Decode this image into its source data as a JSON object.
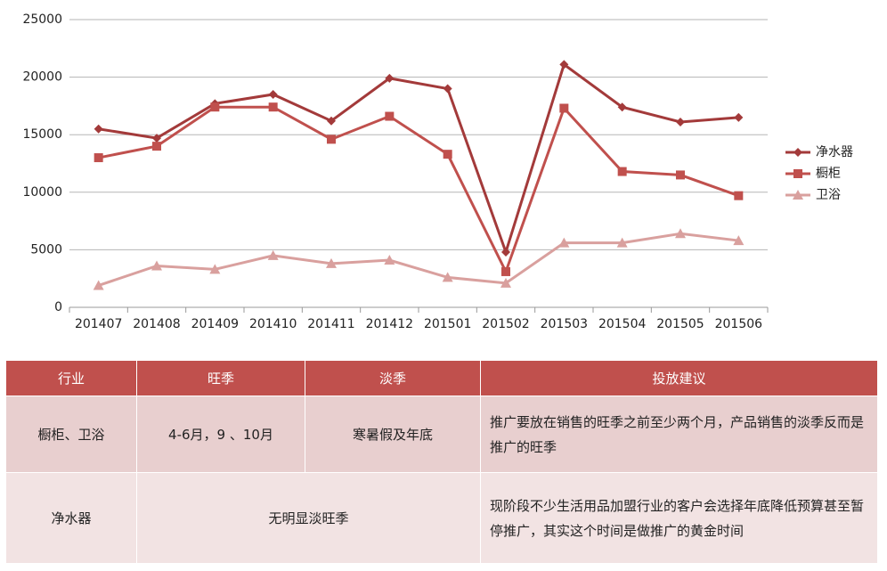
{
  "chart_data": {
    "type": "line",
    "categories": [
      "201407",
      "201408",
      "201409",
      "201410",
      "201411",
      "201412",
      "201501",
      "201502",
      "201503",
      "201504",
      "201505",
      "201506"
    ],
    "series": [
      {
        "name": "净水器",
        "color": "#a33a3a",
        "marker": "diamond",
        "values": [
          15500,
          14700,
          17700,
          18500,
          16200,
          19900,
          19000,
          4800,
          21100,
          17400,
          16100,
          16500
        ]
      },
      {
        "name": "橱柜",
        "color": "#c0504d",
        "marker": "square",
        "values": [
          13000,
          14000,
          17400,
          17400,
          14600,
          16600,
          13300,
          3100,
          17300,
          11800,
          11500,
          9700
        ]
      },
      {
        "name": "卫浴",
        "color": "#d9a09e",
        "marker": "triangle",
        "values": [
          1900,
          3600,
          3300,
          4500,
          3800,
          4100,
          2600,
          2100,
          5600,
          5600,
          6400,
          5800
        ]
      }
    ],
    "ylim": [
      0,
      25000
    ],
    "yticks": [
      0,
      5000,
      10000,
      15000,
      20000,
      25000
    ],
    "grid": true,
    "legend": "right"
  },
  "table": {
    "header": [
      "行业",
      "旺季",
      "淡季",
      "投放建议"
    ],
    "rows": [
      [
        "橱柜、卫浴",
        "4-6月，9 、10月",
        "寒暑假及年底",
        "推广要放在销售的旺季之前至少两个月，产品销售的淡季反而是推广的旺季"
      ],
      [
        "净水器",
        "无明显淡旺季",
        "现阶段不少生活用品加盟行业的客户会选择年底降低预算甚至暂停推广，其实这个时间是做推广的黄金时间"
      ]
    ]
  }
}
